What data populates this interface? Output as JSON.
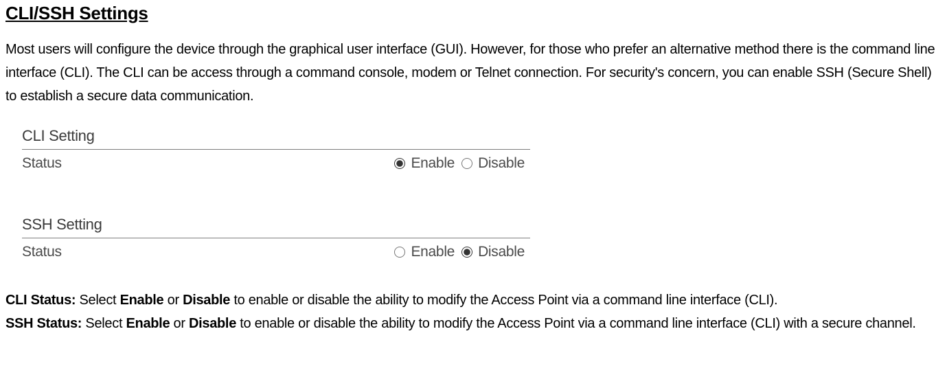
{
  "heading": "CLI/SSH Settings",
  "intro": "Most users will configure the device through the graphical user interface (GUI). However, for those who prefer an alternative method there is the command line interface (CLI). The CLI can be access through a command console, modem or Telnet connection. For security's concern, you can enable SSH (Secure Shell) to establish a secure data communication.",
  "panel": {
    "cli": {
      "title": "CLI Setting",
      "status_label": "Status",
      "enable_label": "Enable",
      "disable_label": "Disable",
      "selected": "enable"
    },
    "ssh": {
      "title": "SSH Setting",
      "status_label": "Status",
      "enable_label": "Enable",
      "disable_label": "Disable",
      "selected": "disable"
    }
  },
  "defs": {
    "cli_label": "CLI Status:",
    "cli_pre": " Select ",
    "cli_enable": "Enable",
    "cli_or": " or ",
    "cli_disable": "Disable",
    "cli_post": " to enable or disable the ability to modify the Access Point via a command line interface (CLI).",
    "ssh_label": "SSH Status:",
    "ssh_pre": " Select ",
    "ssh_enable": "Enable",
    "ssh_or": " or ",
    "ssh_disable": "Disable",
    "ssh_post": " to enable or disable the ability to modify the Access Point via a command line interface (CLI) with a secure channel."
  },
  "colors": {
    "text": "#000000",
    "panel_text": "#3a3a3a",
    "rule": "#7d7d7d",
    "background": "#ffffff"
  },
  "fonts": {
    "heading_size_pt": 20,
    "body_size_pt": 15,
    "panel_title_size_pt": 16
  }
}
